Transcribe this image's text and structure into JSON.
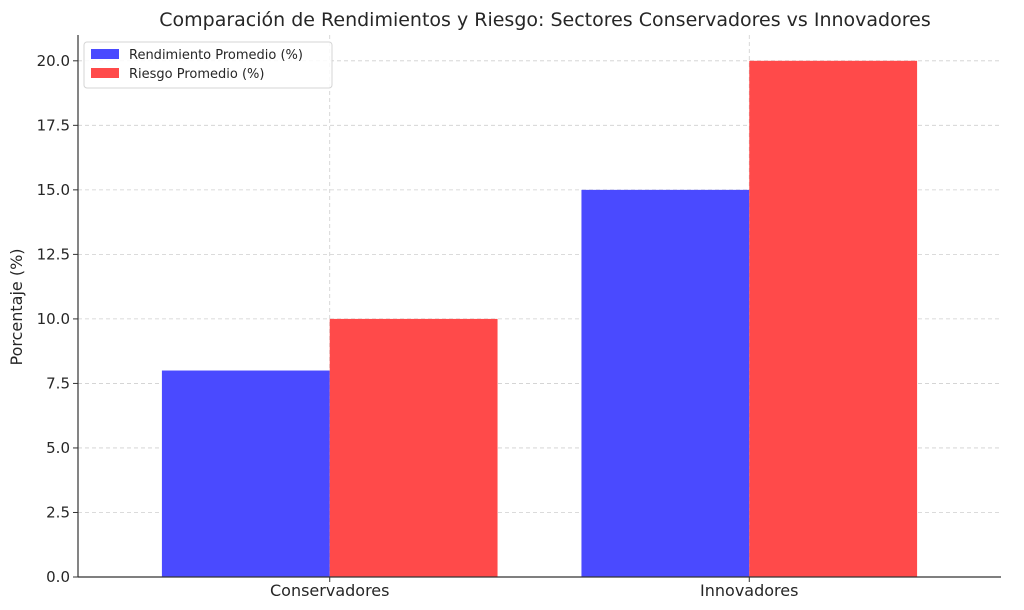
{
  "chart_data": {
    "type": "bar",
    "title": "Comparación de Rendimientos y Riesgo: Sectores Conservadores vs Innovadores",
    "xlabel": "",
    "ylabel": "Porcentaje (%)",
    "categories": [
      "Conservadores",
      "Innovadores"
    ],
    "series": [
      {
        "name": "Rendimiento Promedio (%)",
        "values": [
          8.0,
          15.0
        ],
        "color": "#4a4aff"
      },
      {
        "name": "Riesgo Promedio (%)",
        "values": [
          10.0,
          20.0
        ],
        "color": "#ff4a4a"
      }
    ],
    "ylim": [
      0,
      21
    ],
    "yticks": [
      "0.0",
      "2.5",
      "5.0",
      "7.5",
      "10.0",
      "12.5",
      "15.0",
      "17.5",
      "20.0"
    ],
    "grid": true,
    "legend_position": "top-left"
  }
}
